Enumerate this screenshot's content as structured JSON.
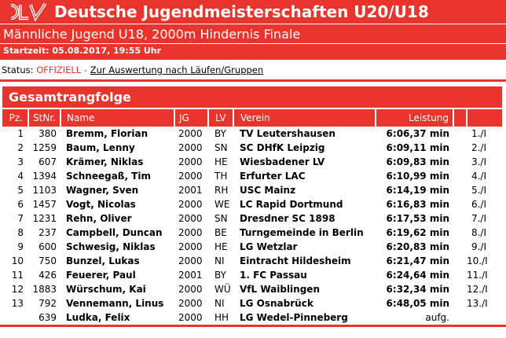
{
  "colors": {
    "red": "#e8342c"
  },
  "header": {
    "logo": "DLV",
    "title": "Deutsche Jugendmeisterschaften U20/U18",
    "subtitle": "Männliche Jugend U18, 2000m Hindernis Finale",
    "start_time": "Startzeit: 05.08.2017, 19:55 Uhr"
  },
  "status": {
    "label": "Status:",
    "value": "OFFIZIELL",
    "separator": "-",
    "link": "Zur Auswertung nach Läufen/Gruppen"
  },
  "section_title": "Gesamtrangfolge",
  "table": {
    "columns": [
      "Pz.",
      "StNr.",
      "Name",
      "JG",
      "LV",
      "Verein",
      "Leistung",
      "",
      ""
    ],
    "rows": [
      {
        "pz": "1",
        "stnr": "380",
        "name": "Bremm, Florian",
        "jg": "2000",
        "lv": "BY",
        "verein": "TV Leutershausen",
        "leistung": "6:06,37 min",
        "heat": "1./I"
      },
      {
        "pz": "2",
        "stnr": "1259",
        "name": "Baum, Lenny",
        "jg": "2000",
        "lv": "SN",
        "verein": "SC DHfK Leipzig",
        "leistung": "6:09,11 min",
        "heat": "2./I"
      },
      {
        "pz": "3",
        "stnr": "607",
        "name": "Krämer, Niklas",
        "jg": "2000",
        "lv": "HE",
        "verein": "Wiesbadener LV",
        "leistung": "6:09,83 min",
        "heat": "3./I"
      },
      {
        "pz": "4",
        "stnr": "1394",
        "name": "Schneegaß, Tim",
        "jg": "2000",
        "lv": "TH",
        "verein": "Erfurter LAC",
        "leistung": "6:10,99 min",
        "heat": "4./I"
      },
      {
        "pz": "5",
        "stnr": "1103",
        "name": "Wagner, Sven",
        "jg": "2001",
        "lv": "RH",
        "verein": "USC Mainz",
        "leistung": "6:14,19 min",
        "heat": "5./I"
      },
      {
        "pz": "6",
        "stnr": "1457",
        "name": "Vogt, Nicolas",
        "jg": "2000",
        "lv": "WE",
        "verein": "LC Rapid Dortmund",
        "leistung": "6:16,83 min",
        "heat": "6./I"
      },
      {
        "pz": "7",
        "stnr": "1231",
        "name": "Rehn, Oliver",
        "jg": "2000",
        "lv": "SN",
        "verein": "Dresdner SC 1898",
        "leistung": "6:17,53 min",
        "heat": "7./I"
      },
      {
        "pz": "8",
        "stnr": "237",
        "name": "Campbell, Duncan",
        "jg": "2000",
        "lv": "BE",
        "verein": "Turngemeinde in Berlin",
        "leistung": "6:19,62 min",
        "heat": "8./I"
      },
      {
        "pz": "9",
        "stnr": "600",
        "name": "Schwesig, Niklas",
        "jg": "2000",
        "lv": "HE",
        "verein": "LG Wetzlar",
        "leistung": "6:20,83 min",
        "heat": "9./I"
      },
      {
        "pz": "10",
        "stnr": "750",
        "name": "Bunzel, Lukas",
        "jg": "2000",
        "lv": "NI",
        "verein": "Eintracht Hildesheim",
        "leistung": "6:21,47 min",
        "heat": "10./I"
      },
      {
        "pz": "11",
        "stnr": "426",
        "name": "Feuerer, Paul",
        "jg": "2001",
        "lv": "BY",
        "verein": "1. FC Passau",
        "leistung": "6:24,64 min",
        "heat": "11./I"
      },
      {
        "pz": "12",
        "stnr": "1883",
        "name": "Würschum, Kai",
        "jg": "2000",
        "lv": "WÜ",
        "verein": "VfL Waiblingen",
        "leistung": "6:32,34 min",
        "heat": "12./I"
      },
      {
        "pz": "13",
        "stnr": "792",
        "name": "Vennemann, Linus",
        "jg": "2000",
        "lv": "NI",
        "verein": "LG Osnabrück",
        "leistung": "6:48,05 min",
        "heat": "13./I"
      },
      {
        "pz": "",
        "stnr": "639",
        "name": "Ludka, Felix",
        "jg": "2000",
        "lv": "HH",
        "verein": "LG Wedel-Pinneberg",
        "leistung": "aufg.",
        "heat": "",
        "result_bold": false
      }
    ]
  }
}
